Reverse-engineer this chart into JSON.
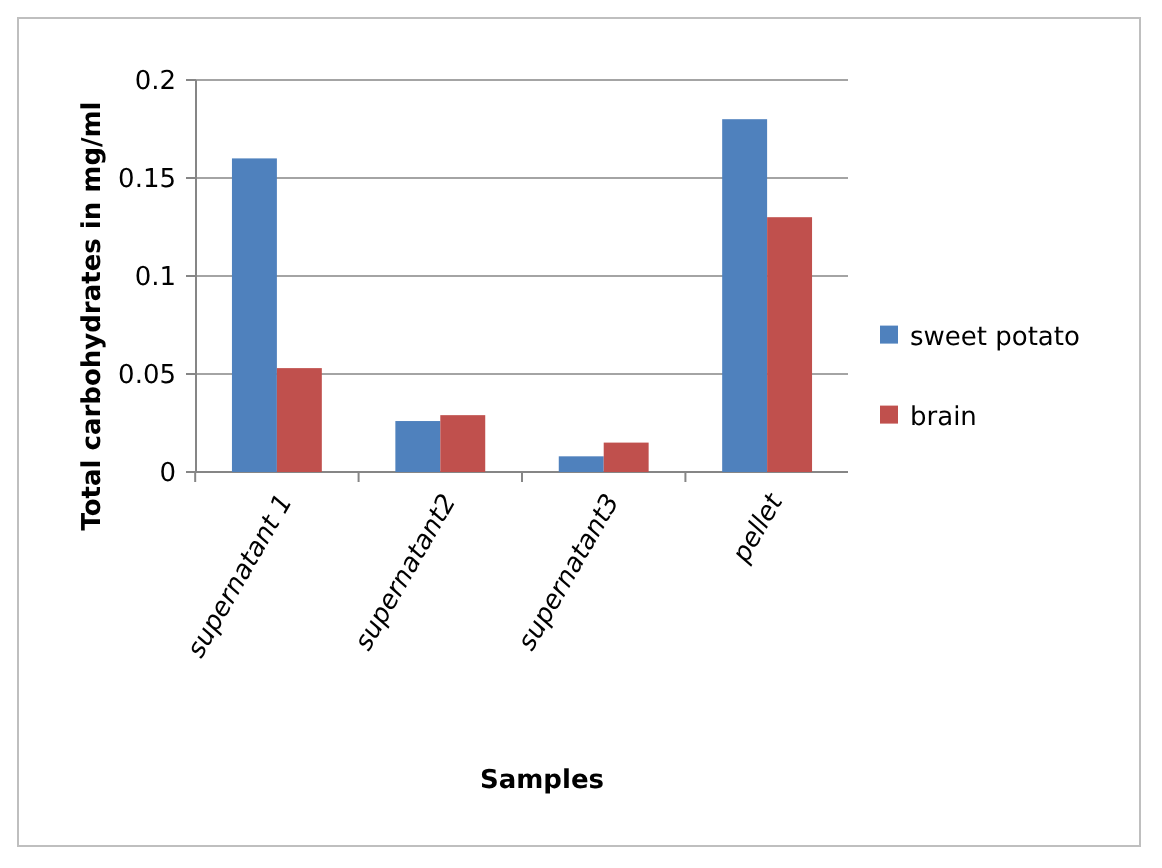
{
  "chart_data": {
    "type": "bar",
    "xlabel": "Samples",
    "ylabel": "Total carbohydrates in mg/ml",
    "categories": [
      "supernatant 1",
      "supernatant2",
      "supernatant3",
      "pellet"
    ],
    "series": [
      {
        "name": "sweet potato",
        "color": "#4f81bd",
        "values": [
          0.16,
          0.026,
          0.008,
          0.18
        ]
      },
      {
        "name": "brain",
        "color": "#c0504d",
        "values": [
          0.053,
          0.029,
          0.015,
          0.13
        ]
      }
    ],
    "ylim": [
      0,
      0.2
    ],
    "yticks": [
      0,
      0.05,
      0.1,
      0.15,
      0.2
    ],
    "grid": "y",
    "legend": "right"
  }
}
